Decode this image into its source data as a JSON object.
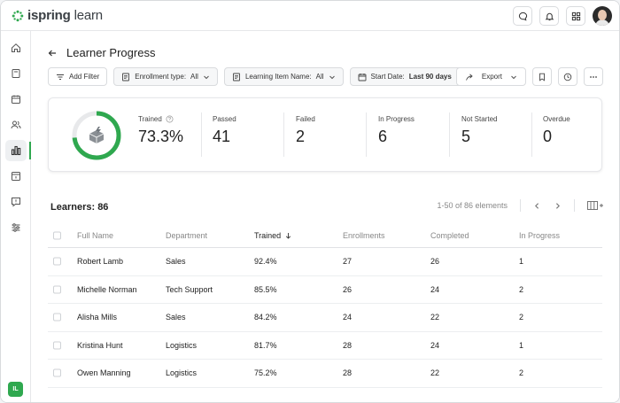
{
  "app": {
    "logo_word": "ispring",
    "logo_word2": "learn",
    "user_initials": "IL"
  },
  "page": {
    "title": "Learner Progress"
  },
  "filters": [
    {
      "label": "Add Filter",
      "value": ""
    },
    {
      "label": "Enrollment type:",
      "value": "All"
    },
    {
      "label": "Learning Item Name:",
      "value": "All"
    },
    {
      "label": "Start Date:",
      "value": "Last 90 days"
    }
  ],
  "actions": {
    "export_label": "Export"
  },
  "stats": {
    "trained_percent": 73.3,
    "trained": {
      "label": "Trained",
      "value": "73.3%"
    },
    "passed": {
      "label": "Passed",
      "value": "41"
    },
    "failed": {
      "label": "Failed",
      "value": "2"
    },
    "in_progress": {
      "label": "In Progress",
      "value": "6"
    },
    "not_started": {
      "label": "Not Started",
      "value": "5"
    },
    "overdue": {
      "label": "Overdue",
      "value": "0"
    }
  },
  "learners": {
    "label": "Learners: 86",
    "range": "1-50 of 86 elements"
  },
  "table": {
    "headers": {
      "name": "Full Name",
      "dept": "Department",
      "trained": "Trained",
      "enr": "Enrollments",
      "comp": "Completed",
      "prog": "In Progress"
    },
    "rows": [
      {
        "name": "Robert Lamb",
        "dept": "Sales",
        "trained": "92.4%",
        "enr": "27",
        "comp": "26",
        "prog": "1"
      },
      {
        "name": "Michelle Norman",
        "dept": "Tech Support",
        "trained": "85.5%",
        "enr": "26",
        "comp": "24",
        "prog": "2"
      },
      {
        "name": "Alisha Mills",
        "dept": "Sales",
        "trained": "84.2%",
        "enr": "24",
        "comp": "22",
        "prog": "2"
      },
      {
        "name": "Kristina Hunt",
        "dept": "Logistics",
        "trained": "81.7%",
        "enr": "28",
        "comp": "24",
        "prog": "1"
      },
      {
        "name": "Owen Manning",
        "dept": "Logistics",
        "trained": "75.2%",
        "enr": "28",
        "comp": "22",
        "prog": "2"
      }
    ]
  },
  "colors": {
    "accent": "#2fa84f",
    "ring_track": "#e8e9eb"
  }
}
